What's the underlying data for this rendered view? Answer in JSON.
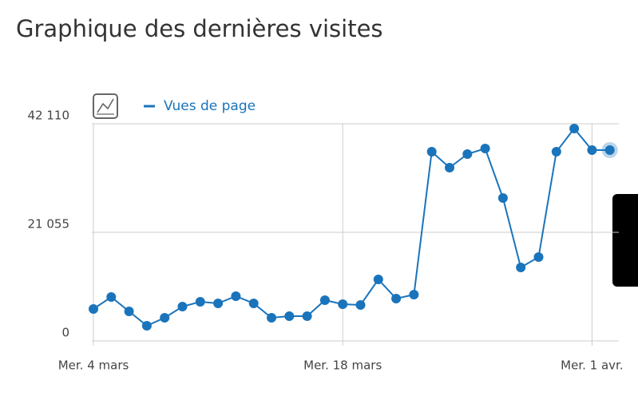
{
  "chart_data": {
    "type": "line",
    "title": "Graphique des dernières visites",
    "categories": [
      "Mer. 4 mars",
      null,
      null,
      null,
      null,
      null,
      null,
      null,
      null,
      null,
      null,
      null,
      null,
      null,
      "Mer. 18 mars",
      null,
      null,
      null,
      null,
      null,
      null,
      null,
      null,
      null,
      null,
      null,
      null,
      null,
      "Mer. 1 avr.",
      null
    ],
    "series": [
      {
        "name": "Vues de page",
        "color": "#1a74bb",
        "values": [
          6193,
          8516,
          5728,
          2942,
          4490,
          6657,
          7586,
          7276,
          8670,
          7276,
          4490,
          4800,
          4800,
          7896,
          7122,
          6966,
          11921,
          8206,
          8980,
          36690,
          33594,
          36226,
          37310,
          27711,
          14243,
          16255,
          36690,
          41180,
          37000,
          37000
        ]
      }
    ],
    "ylim": [
      0,
      42110
    ],
    "yticks": [
      0,
      {
        "value": 21055,
        "label": "21 055"
      },
      {
        "value": 42110,
        "label": "42 110"
      }
    ],
    "grid": true
  }
}
